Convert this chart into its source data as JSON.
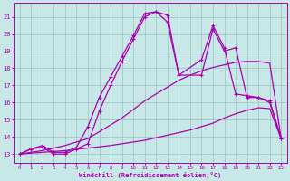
{
  "xlabel": "Windchill (Refroidissement éolien,°C)",
  "xlim": [
    -0.5,
    23.5
  ],
  "ylim": [
    12.5,
    21.8
  ],
  "yticks": [
    13,
    14,
    15,
    16,
    17,
    18,
    19,
    20,
    21
  ],
  "xticks": [
    0,
    1,
    2,
    3,
    4,
    5,
    6,
    7,
    8,
    9,
    10,
    11,
    12,
    13,
    14,
    15,
    16,
    17,
    18,
    19,
    20,
    21,
    22,
    23
  ],
  "bg_color": "#c8e8e8",
  "grid_color": "#a0c8c8",
  "line_color": "#aa00aa",
  "curves": [
    {
      "x": [
        0,
        1,
        2,
        3,
        4,
        5,
        6,
        7,
        8,
        9,
        10,
        11,
        12,
        13,
        14,
        15,
        16,
        17,
        18,
        19,
        20,
        21,
        22,
        23
      ],
      "y": [
        13.0,
        13.05,
        13.1,
        13.15,
        13.2,
        13.28,
        13.35,
        13.42,
        13.5,
        13.6,
        13.7,
        13.8,
        13.95,
        14.1,
        14.25,
        14.4,
        14.6,
        14.8,
        15.1,
        15.35,
        15.55,
        15.7,
        15.65,
        13.9
      ],
      "marker": null,
      "lw": 0.9
    },
    {
      "x": [
        0,
        1,
        2,
        3,
        4,
        5,
        6,
        7,
        8,
        9,
        10,
        11,
        12,
        13,
        14,
        15,
        16,
        17,
        18,
        19,
        20,
        21,
        22,
        23
      ],
      "y": [
        13.0,
        13.1,
        13.2,
        13.35,
        13.5,
        13.7,
        13.9,
        14.3,
        14.7,
        15.1,
        15.6,
        16.1,
        16.5,
        16.9,
        17.3,
        17.6,
        17.85,
        18.05,
        18.2,
        18.35,
        18.4,
        18.4,
        18.3,
        13.9
      ],
      "marker": null,
      "lw": 0.9
    },
    {
      "x": [
        0,
        1,
        2,
        3,
        4,
        5,
        6,
        7,
        8,
        9,
        10,
        11,
        12,
        13,
        14,
        16,
        17,
        18,
        19,
        20,
        21,
        22,
        23
      ],
      "y": [
        13.0,
        13.3,
        13.5,
        13.1,
        13.1,
        13.4,
        14.6,
        16.3,
        17.5,
        18.7,
        19.9,
        21.2,
        21.3,
        20.7,
        17.6,
        17.6,
        20.3,
        19.0,
        19.2,
        16.3,
        16.3,
        16.0,
        13.9
      ],
      "marker": "+",
      "lw": 0.9
    },
    {
      "x": [
        0,
        1,
        2,
        3,
        4,
        5,
        6,
        7,
        8,
        9,
        10,
        11,
        12,
        13,
        14,
        16,
        17,
        18,
        19,
        20,
        21,
        22,
        23
      ],
      "y": [
        13.0,
        13.3,
        13.4,
        13.0,
        13.0,
        13.3,
        13.6,
        15.5,
        17.0,
        18.4,
        19.7,
        21.0,
        21.3,
        21.1,
        17.6,
        18.5,
        20.5,
        19.2,
        16.5,
        16.4,
        16.3,
        16.1,
        13.9
      ],
      "marker": "+",
      "lw": 0.9
    }
  ]
}
